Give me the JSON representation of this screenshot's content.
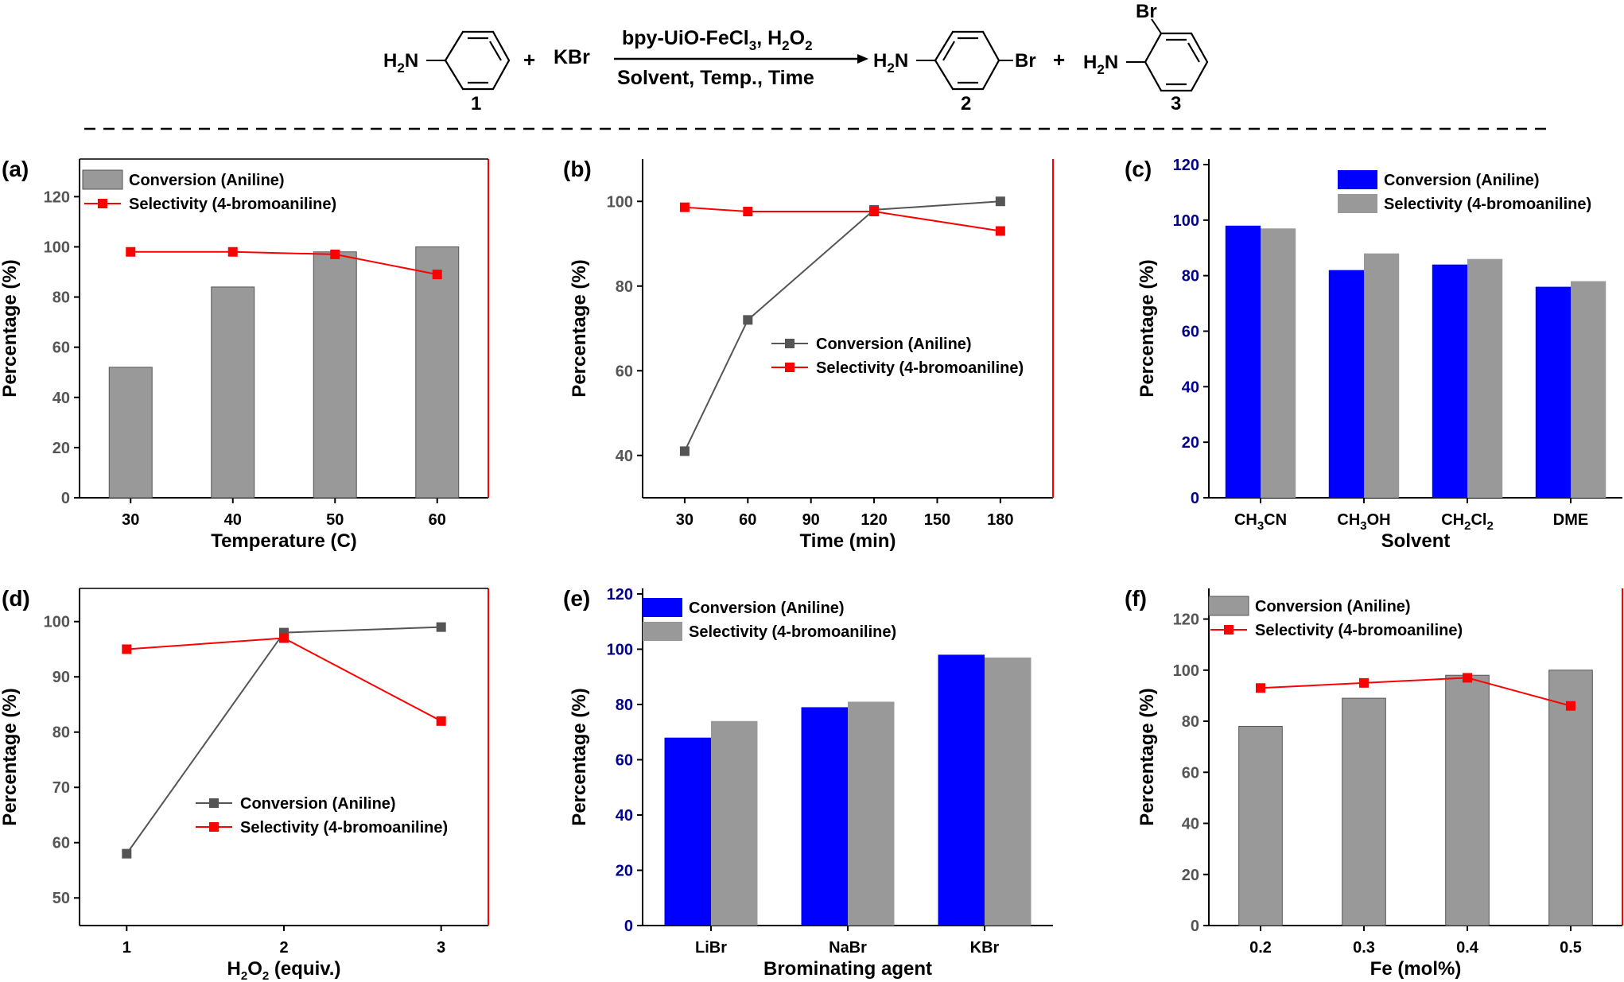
{
  "scheme": {
    "reactant1_amine": "H",
    "reactant1_sub": "2",
    "reactant1_n": "N",
    "reactant1_number": "1",
    "plus1": "+",
    "reagent": "KBr",
    "catalyst_a": "bpy-UiO-FeCl",
    "catalyst_sub1": "3",
    "catalyst_b": ", H",
    "catalyst_sub2": "2",
    "catalyst_c": "O",
    "catalyst_sub3": "2",
    "conditions": "Solvent, Temp., Time",
    "product2_amine": "H",
    "product2_sub": "2",
    "product2_n": "N",
    "product2_br": "Br",
    "product2_number": "2",
    "plus2": "+",
    "product3_amine": "H",
    "product3_sub": "2",
    "product3_n": "N",
    "product3_br": "Br",
    "product3_number": "3"
  },
  "chart_data": [
    {
      "panel": "(a)",
      "type": "bar+line",
      "categories": [
        "30",
        "40",
        "50",
        "60"
      ],
      "series": [
        {
          "name": "Conversion (Aniline)",
          "kind": "bar",
          "color": "#999999",
          "values": [
            52,
            84,
            98,
            100
          ]
        },
        {
          "name": "Selectivity (4-bromoaniline)",
          "kind": "line",
          "color": "#ff0000",
          "values": [
            98,
            98,
            97,
            89
          ]
        }
      ],
      "xlabel": "Temperature (°C)",
      "ylabel": "Percentage (%)",
      "ylim": [
        0,
        135
      ],
      "yticks": [
        0,
        20,
        40,
        60,
        80,
        100,
        120
      ],
      "legend": "top-left"
    },
    {
      "panel": "(b)",
      "type": "line",
      "x": [
        30,
        60,
        120,
        180
      ],
      "xticks": [
        30,
        60,
        90,
        120,
        150,
        180
      ],
      "xlim": [
        10,
        205
      ],
      "series": [
        {
          "name": "Conversion (Aniline)",
          "color": "#555555",
          "values": [
            41,
            72,
            98,
            100
          ]
        },
        {
          "name": "Selectivity (4-bromoaniline)",
          "color": "#ff0000",
          "values": [
            98.6,
            97.6,
            97.6,
            93
          ]
        }
      ],
      "xlabel": "Time (min)",
      "ylabel": "Percentage (%)",
      "ylim": [
        30,
        110
      ],
      "yticks": [
        40,
        60,
        80,
        100
      ],
      "legend": "center-right"
    },
    {
      "panel": "(c)",
      "type": "bar",
      "categories": [
        "CH3CN",
        "CH3OH",
        "CH2Cl2",
        "DME"
      ],
      "series": [
        {
          "name": "Conversion (Aniline)",
          "color": "#0000ff",
          "values": [
            98,
            82,
            84,
            76
          ]
        },
        {
          "name": "Selectivity (4-bromoaniline)",
          "color": "#999999",
          "values": [
            97,
            88,
            86,
            78
          ]
        }
      ],
      "xlabel": "Solvent",
      "ylabel": "Percentage (%)",
      "ylim": [
        0,
        122
      ],
      "yticks": [
        0,
        20,
        40,
        60,
        80,
        100,
        120
      ],
      "legend": "top-right"
    },
    {
      "panel": "(d)",
      "type": "line",
      "x": [
        1,
        2,
        3
      ],
      "xticks": [
        1,
        2,
        3
      ],
      "xlim": [
        0.7,
        3.3
      ],
      "series": [
        {
          "name": "Conversion (Aniline)",
          "color": "#555555",
          "values": [
            58,
            98,
            99
          ]
        },
        {
          "name": "Selectivity (4-bromoaniline)",
          "color": "#ff0000",
          "values": [
            95,
            97,
            82
          ]
        }
      ],
      "xlabel": "H2O2 (equiv.)",
      "ylabel": "Percentage (%)",
      "ylim": [
        45,
        106
      ],
      "yticks": [
        50,
        60,
        70,
        80,
        90,
        100
      ],
      "legend": "bottom-right"
    },
    {
      "panel": "(e)",
      "type": "bar",
      "categories": [
        "LiBr",
        "NaBr",
        "KBr"
      ],
      "series": [
        {
          "name": "Conversion (Aniline)",
          "color": "#0000ff",
          "values": [
            68,
            79,
            98
          ]
        },
        {
          "name": "Selectivity (4-bromoaniline)",
          "color": "#999999",
          "values": [
            74,
            81,
            97
          ]
        }
      ],
      "xlabel": "Brominating agent",
      "ylabel": "Percentage (%)",
      "ylim": [
        0,
        122
      ],
      "yticks": [
        0,
        20,
        40,
        60,
        80,
        100,
        120
      ],
      "legend": "top-left"
    },
    {
      "panel": "(f)",
      "type": "bar+line",
      "categories": [
        "0.2",
        "0.3",
        "0.4",
        "0.5"
      ],
      "series": [
        {
          "name": "Conversion (Aniline)",
          "kind": "bar",
          "color": "#999999",
          "values": [
            78,
            89,
            98,
            100
          ]
        },
        {
          "name": "Selectivity (4-bromoaniline)",
          "kind": "line",
          "color": "#ff0000",
          "values": [
            93,
            95,
            97,
            86
          ]
        }
      ],
      "xlabel": "Fe (mol%)",
      "ylabel": "Percentage (%)",
      "ylim": [
        0,
        132
      ],
      "yticks": [
        0,
        20,
        40,
        60,
        80,
        100,
        120
      ],
      "legend": "top-left"
    }
  ]
}
